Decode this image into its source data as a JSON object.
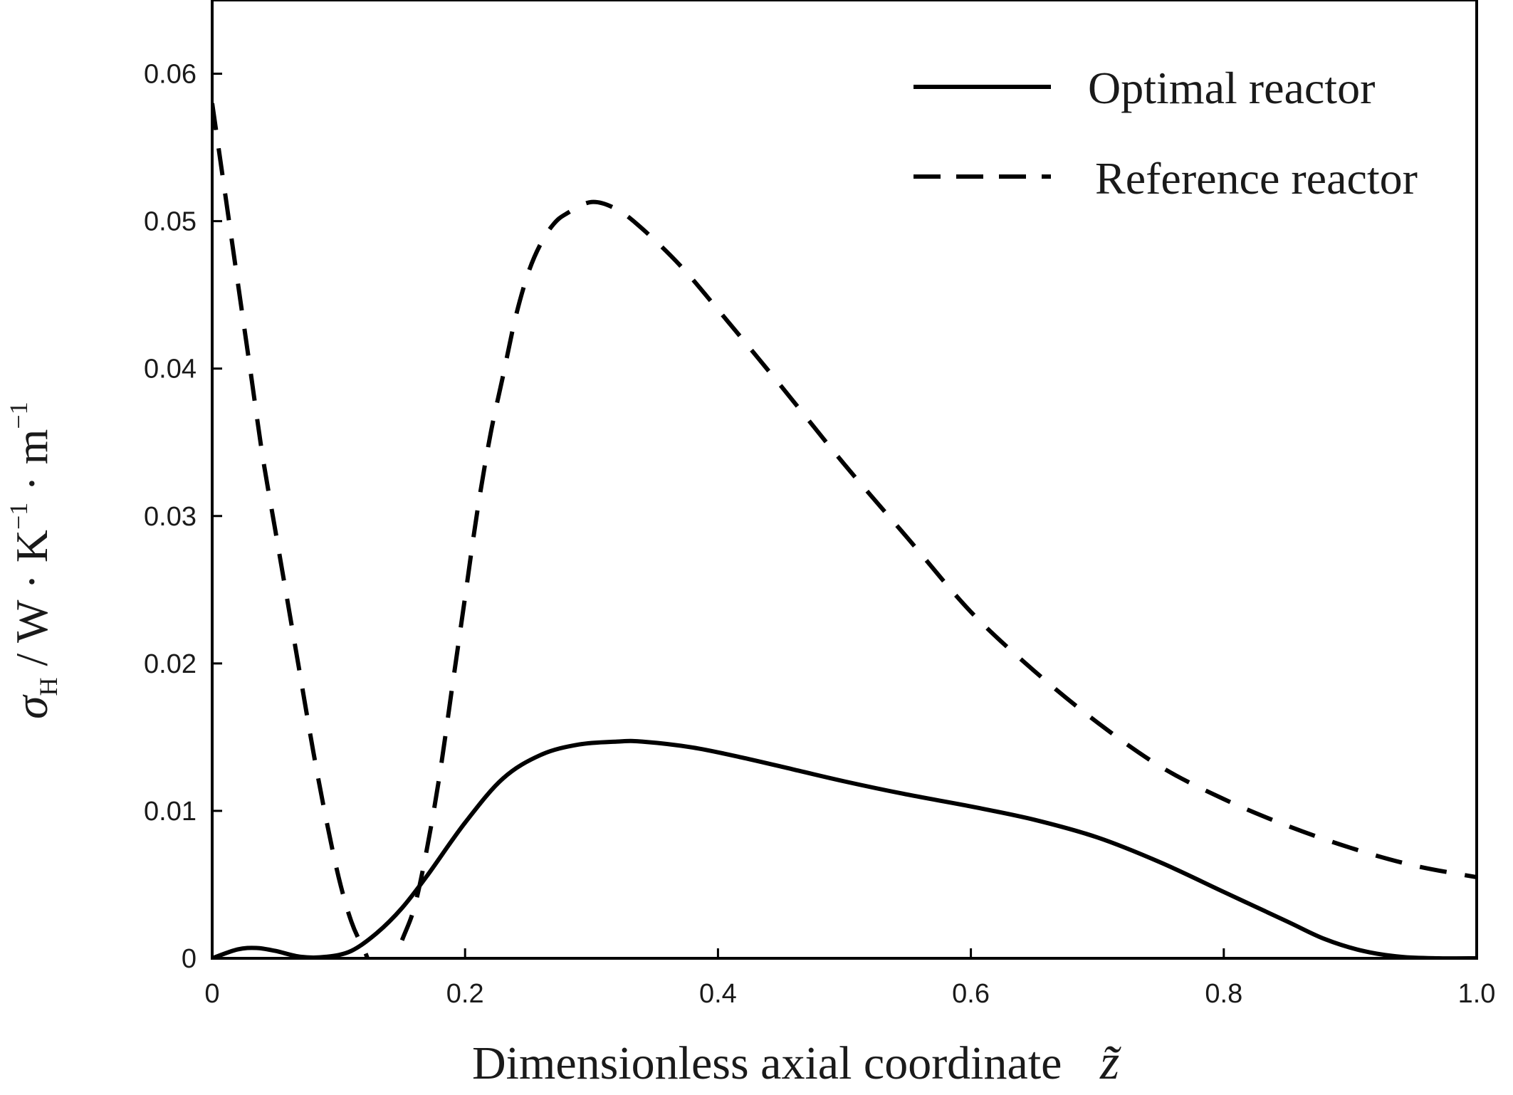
{
  "chart_data": {
    "type": "line",
    "title": "",
    "xlabel": "Dimensionless axial coordinate",
    "xlabel_symbol": "z̃",
    "ylabel": {
      "symbol": "σ",
      "subscript": "H",
      "units_main": "/ W · K",
      "units_exp1": "−1",
      "units_mid": " · m",
      "units_exp2": "−1"
    },
    "xlim": [
      0,
      1.0
    ],
    "ylim": [
      0,
      0.065
    ],
    "xticks": [
      0,
      0.2,
      0.4,
      0.6,
      0.8,
      1.0
    ],
    "xtick_labels": [
      "0",
      "0.2",
      "0.4",
      "0.6",
      "0.8",
      "1.0"
    ],
    "yticks": [
      0,
      0.01,
      0.02,
      0.03,
      0.04,
      0.05,
      0.06
    ],
    "ytick_labels": [
      "0",
      "0.01",
      "0.02",
      "0.03",
      "0.04",
      "0.05",
      "0.06"
    ],
    "grid": false,
    "legend_position": "top-right",
    "series": [
      {
        "name": "Optimal reactor",
        "style": "solid",
        "color": "#000000",
        "x": [
          0,
          0.02,
          0.035,
          0.05,
          0.07,
          0.09,
          0.11,
          0.13,
          0.15,
          0.17,
          0.2,
          0.23,
          0.26,
          0.29,
          0.32,
          0.34,
          0.38,
          0.42,
          0.46,
          0.5,
          0.55,
          0.6,
          0.65,
          0.7,
          0.75,
          0.8,
          0.85,
          0.88,
          0.91,
          0.94,
          0.97,
          1.0
        ],
        "y": [
          0,
          0.0006,
          0.0007,
          0.0005,
          0.0001,
          0.0001,
          0.0005,
          0.0017,
          0.0034,
          0.0056,
          0.0092,
          0.0122,
          0.0138,
          0.0145,
          0.0147,
          0.0147,
          0.0143,
          0.0136,
          0.0128,
          0.012,
          0.0111,
          0.0103,
          0.0094,
          0.0082,
          0.0065,
          0.0045,
          0.0025,
          0.0013,
          0.0005,
          0.0001,
          0.0,
          0.0
        ]
      },
      {
        "name": "Reference reactor",
        "style": "dashed",
        "color": "#000000",
        "x": [
          0,
          0.01,
          0.02,
          0.03,
          0.04,
          0.05,
          0.06,
          0.07,
          0.08,
          0.09,
          0.1,
          0.11,
          0.12,
          0.135,
          0.15,
          0.16,
          0.17,
          0.18,
          0.19,
          0.2,
          0.21,
          0.22,
          0.23,
          0.24,
          0.25,
          0.26,
          0.27,
          0.28,
          0.3,
          0.32,
          0.34,
          0.37,
          0.4,
          0.45,
          0.5,
          0.55,
          0.6,
          0.65,
          0.7,
          0.75,
          0.8,
          0.85,
          0.9,
          0.95,
          1.0
        ],
        "y": [
          0.058,
          0.052,
          0.046,
          0.04,
          0.034,
          0.029,
          0.024,
          0.019,
          0.014,
          0.0095,
          0.0055,
          0.0025,
          0.0006,
          -0.002,
          0.0012,
          0.0035,
          0.0075,
          0.0125,
          0.0185,
          0.0245,
          0.0305,
          0.0355,
          0.0395,
          0.0435,
          0.0465,
          0.0485,
          0.0498,
          0.0505,
          0.0513,
          0.0508,
          0.0495,
          0.047,
          0.044,
          0.0388,
          0.0335,
          0.0285,
          0.0235,
          0.0195,
          0.016,
          0.013,
          0.0108,
          0.009,
          0.0075,
          0.0063,
          0.0055
        ]
      }
    ]
  }
}
